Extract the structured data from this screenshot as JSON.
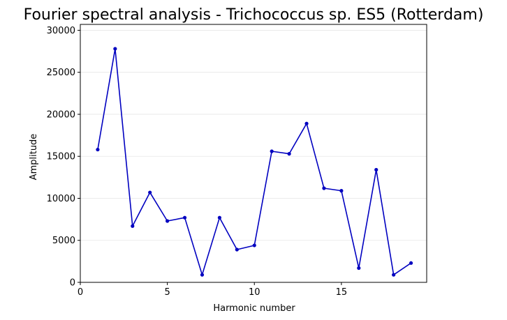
{
  "chart_data": {
    "type": "line",
    "title": "Fourier spectral analysis - Trichococcus sp. ES5 (Rotterdam)",
    "xlabel": "Harmonic number",
    "ylabel": "Amplitude",
    "xlim": [
      0,
      19.9
    ],
    "ylim": [
      0,
      30700
    ],
    "xticks": [
      0,
      5,
      10,
      15
    ],
    "yticks": [
      0,
      5000,
      10000,
      15000,
      20000,
      25000,
      30000
    ],
    "grid": "y-axis horizontal, light",
    "series": [
      {
        "color": "#0000c0",
        "marker": "circle",
        "x": [
          1,
          2,
          3,
          4,
          5,
          6,
          7,
          8,
          9,
          10,
          11,
          12,
          13,
          14,
          15,
          16,
          17,
          18,
          19
        ],
        "y": [
          15800,
          27800,
          6700,
          10700,
          7300,
          7700,
          900,
          7700,
          3900,
          4400,
          15600,
          15300,
          18900,
          11200,
          10900,
          1700,
          13400,
          900,
          2300
        ]
      }
    ]
  }
}
